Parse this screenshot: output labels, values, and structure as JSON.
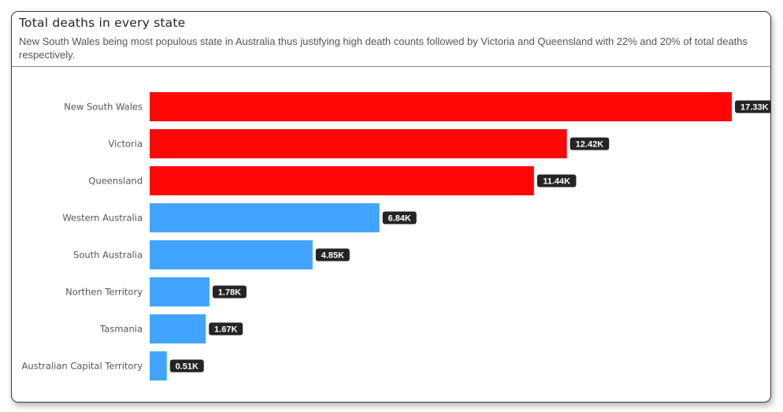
{
  "title": "Total deaths in every state",
  "subtitle": "New South Wales being most populous state in Australia thus justifying high death counts followed by Victoria and Queensland with 22% and 20% of total deaths respectively.",
  "chart_data": {
    "type": "bar",
    "orientation": "horizontal",
    "categories": [
      "New South Wales",
      "Victoria",
      "Queensland",
      "Western Australia",
      "South Australia",
      "Northen Territory",
      "Tasmania",
      "Australian Capital Territory"
    ],
    "values": [
      17330,
      12420,
      11440,
      6840,
      4850,
      1780,
      1670,
      510
    ],
    "data_labels": [
      "17.33K",
      "12.42K",
      "11.44K",
      "6.84K",
      "4.85K",
      "1.78K",
      "1.67K",
      "0.51K"
    ],
    "xlim": [
      0,
      17330
    ],
    "grid": false,
    "legend": "none",
    "colors": {
      "highlight": "#ff0707",
      "default": "#41a4ff",
      "label_bg": "#252423",
      "label_text": "#ffffff"
    },
    "highlighted": [
      true,
      true,
      true,
      false,
      false,
      false,
      false,
      false
    ]
  }
}
